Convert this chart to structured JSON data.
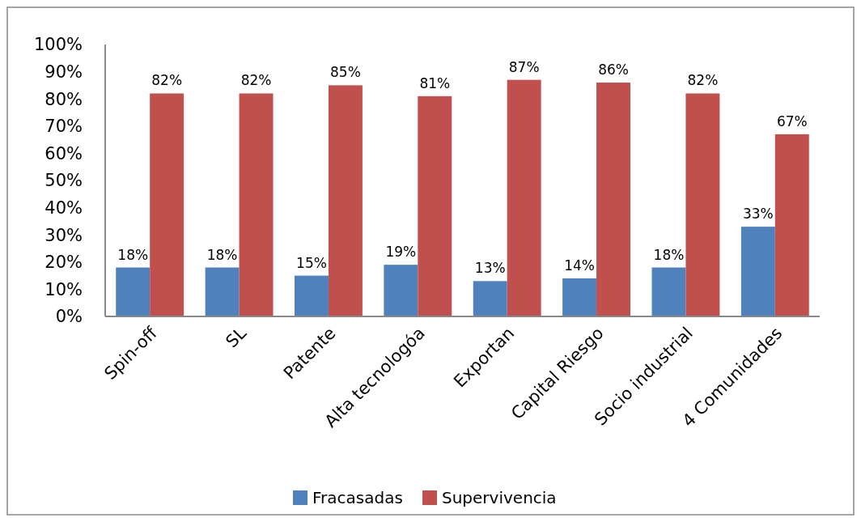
{
  "chart_data": {
    "type": "bar",
    "categories": [
      "Spin-off",
      "SL",
      "Patente",
      "Alta tecnologóa",
      "Exportan",
      "Capital Riesgo",
      "Socio industrial",
      "4 Comunidades"
    ],
    "series": [
      {
        "name": "Fracasadas",
        "color": "#4f81bd",
        "values": [
          18,
          18,
          15,
          19,
          13,
          14,
          18,
          33
        ],
        "value_labels": [
          "18%",
          "18%",
          "15%",
          "19%",
          "13%",
          "14%",
          "18%",
          "33%"
        ]
      },
      {
        "name": "Supervivencia",
        "color": "#c0504d",
        "values": [
          82,
          82,
          85,
          81,
          87,
          86,
          82,
          67
        ],
        "value_labels": [
          "82%",
          "82%",
          "85%",
          "81%",
          "87%",
          "86%",
          "82%",
          "67%"
        ]
      }
    ],
    "ylim": [
      0,
      100
    ],
    "yticks": [
      {
        "value": 0,
        "label": "0%"
      },
      {
        "value": 10,
        "label": "10%"
      },
      {
        "value": 20,
        "label": "20%"
      },
      {
        "value": 30,
        "label": "30%"
      },
      {
        "value": 40,
        "label": "40%"
      },
      {
        "value": 50,
        "label": "50%"
      },
      {
        "value": 60,
        "label": "60%"
      },
      {
        "value": 70,
        "label": "70%"
      },
      {
        "value": 80,
        "label": "80%"
      },
      {
        "value": 90,
        "label": "90%"
      },
      {
        "value": 100,
        "label": "100%"
      }
    ],
    "grid": false,
    "legend": "bottom"
  }
}
